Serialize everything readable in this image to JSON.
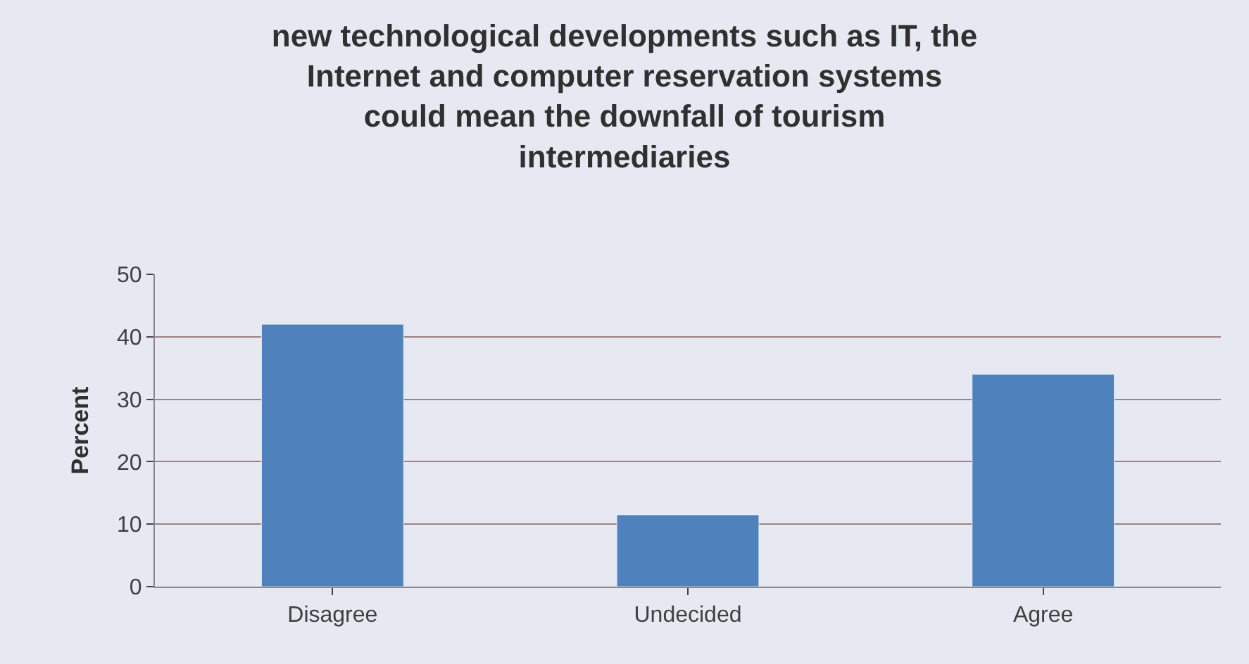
{
  "chart_data": {
    "type": "bar",
    "title": "new technological developments such as IT, the Internet and computer reservation systems could mean the downfall of tourism intermediaries",
    "ylabel": "Percent",
    "categories": [
      "Disagree",
      "Undecided",
      "Agree"
    ],
    "values": [
      42,
      11.5,
      34
    ],
    "color": "#4f81bd",
    "ylim": [
      0,
      50
    ],
    "yticks": [
      0,
      10,
      20,
      30,
      40,
      50
    ],
    "grid": "y"
  }
}
